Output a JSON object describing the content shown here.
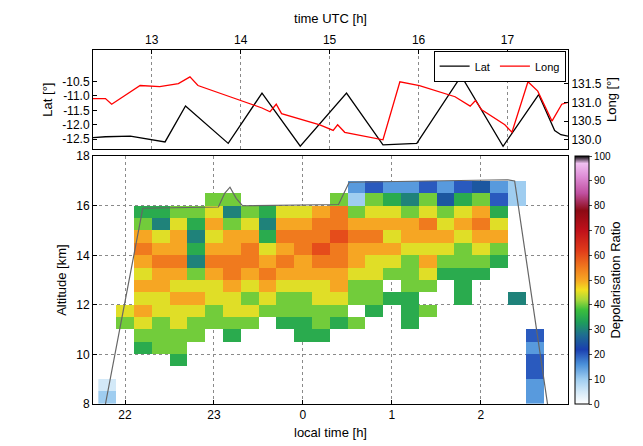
{
  "chart_data": [
    {
      "type": "line",
      "xlabel": "time UTC [h]",
      "ylabel": "Lat [°]",
      "y2label": "Long [°]",
      "xlim": [
        12.34,
        17.68
      ],
      "xticks": [
        13,
        14,
        15,
        16,
        17
      ],
      "ylim": [
        -12.85,
        -9.4
      ],
      "yticks": [
        -12.5,
        {
          "value": -12,
          "label": "-12.0"
        },
        -11.5,
        {
          "value": -11,
          "label": "-11.0"
        },
        -10.5
      ],
      "y2lim": [
        129.75,
        132.4
      ],
      "y2ticks": [
        {
          "value": 130,
          "label": "130.0"
        },
        130.5,
        {
          "value": 131,
          "label": "131.0"
        },
        131.5
      ],
      "grid": true,
      "legend": "upper right",
      "series": [
        {
          "name": "Lat",
          "color": "#000000",
          "x": [
            12.34,
            12.48,
            12.76,
            12.98,
            13.15,
            13.38,
            13.86,
            14.24,
            14.67,
            15.19,
            15.6,
            15.98,
            16.48,
            16.95,
            17.35,
            17.53,
            17.6,
            17.68
          ],
          "values": [
            -12.45,
            -12.42,
            -12.4,
            -12.5,
            -12.6,
            -11.35,
            -12.65,
            -10.9,
            -12.75,
            -10.9,
            -12.7,
            -12.65,
            -10.3,
            -12.75,
            -10.95,
            -12.2,
            -12.35,
            -12.4
          ]
        },
        {
          "name": "Long",
          "color": "#ff0000",
          "axis": "y2",
          "x": [
            12.34,
            12.48,
            12.55,
            12.87,
            13.09,
            13.3,
            13.43,
            13.52,
            13.88,
            14.24,
            14.33,
            14.4,
            14.46,
            14.89,
            15.04,
            15.09,
            15.17,
            15.6,
            15.79,
            16.01,
            16.41,
            16.58,
            16.64,
            16.71,
            16.97,
            17.05,
            17.23,
            17.34,
            17.5,
            17.61,
            17.68
          ],
          "values": [
            131.1,
            131.1,
            130.95,
            131.45,
            131.42,
            131.5,
            131.68,
            131.45,
            131.15,
            130.85,
            130.75,
            130.95,
            130.7,
            130.4,
            130.25,
            130.4,
            130.2,
            130.0,
            131.55,
            131.45,
            131.15,
            130.9,
            131.05,
            130.8,
            130.4,
            130.2,
            131.55,
            131.3,
            130.5,
            130.95,
            131.0
          ]
        }
      ]
    },
    {
      "type": "heatmap",
      "xlabel": "local time [h]",
      "ylabel": "Altitude [km]",
      "colorbar_label": "Depolarisation Ratio",
      "xlim": [
        21.64,
        26.98
      ],
      "xticks": [
        22,
        23,
        {
          "value": 24,
          "label": "0"
        },
        {
          "value": 25,
          "label": "1"
        },
        {
          "value": 26,
          "label": "2"
        }
      ],
      "ylim": [
        8,
        18
      ],
      "yticks": [
        8,
        10,
        12,
        14,
        16,
        18
      ],
      "grid": true,
      "colorbar_range": [
        0,
        100
      ],
      "colorbar_ticks": [
        0,
        10,
        20,
        30,
        40,
        50,
        60,
        70,
        80,
        90,
        100
      ],
      "x": [
        21.8,
        22,
        22.2,
        22.4,
        22.6,
        22.8,
        23,
        23.2,
        23.4,
        23.6,
        23.8,
        24,
        24.2,
        24.4,
        24.6,
        24.8,
        25,
        25.2,
        25.4,
        25.6,
        25.8,
        26,
        26.2,
        26.4,
        26.6,
        26.8
      ],
      "y": [
        8.25,
        8.75,
        9.25,
        9.75,
        10.25,
        10.75,
        11.25,
        11.75,
        12.25,
        12.75,
        13.25,
        13.75,
        14.25,
        14.75,
        15.25,
        15.75,
        16.25,
        16.75,
        17.25
      ],
      "z": [
        [
          10,
          null,
          null,
          null,
          null,
          null,
          null,
          null,
          null,
          null,
          null,
          null,
          null,
          null,
          null,
          null,
          null,
          null,
          null,
          null,
          null,
          null,
          null,
          null,
          15,
          null
        ],
        [
          5,
          null,
          null,
          null,
          null,
          null,
          null,
          null,
          null,
          null,
          null,
          null,
          null,
          null,
          null,
          null,
          null,
          null,
          null,
          null,
          null,
          null,
          null,
          null,
          15,
          null
        ],
        [
          null,
          null,
          null,
          null,
          null,
          null,
          null,
          null,
          null,
          null,
          null,
          null,
          null,
          null,
          null,
          null,
          null,
          null,
          null,
          null,
          null,
          null,
          null,
          null,
          20,
          null
        ],
        [
          null,
          null,
          null,
          null,
          35,
          null,
          null,
          null,
          null,
          null,
          null,
          null,
          null,
          null,
          null,
          null,
          null,
          null,
          null,
          null,
          null,
          null,
          null,
          null,
          20,
          null
        ],
        [
          null,
          null,
          35,
          40,
          40,
          null,
          null,
          null,
          null,
          null,
          null,
          null,
          null,
          null,
          null,
          null,
          null,
          null,
          null,
          null,
          null,
          null,
          null,
          null,
          15,
          null
        ],
        [
          null,
          null,
          40,
          40,
          40,
          40,
          null,
          35,
          null,
          null,
          null,
          35,
          35,
          null,
          null,
          null,
          null,
          null,
          null,
          null,
          null,
          null,
          null,
          null,
          20,
          null
        ],
        [
          null,
          40,
          45,
          40,
          45,
          40,
          40,
          40,
          40,
          null,
          35,
          35,
          40,
          35,
          40,
          null,
          null,
          35,
          null,
          null,
          null,
          null,
          null,
          null,
          null,
          null
        ],
        [
          null,
          45,
          50,
          45,
          45,
          45,
          40,
          45,
          45,
          40,
          40,
          40,
          40,
          40,
          null,
          35,
          null,
          35,
          40,
          null,
          null,
          null,
          null,
          null,
          null,
          null
        ],
        [
          null,
          null,
          45,
          45,
          50,
          50,
          45,
          45,
          40,
          45,
          40,
          40,
          45,
          45,
          40,
          40,
          35,
          35,
          null,
          null,
          35,
          null,
          null,
          30,
          null,
          null
        ],
        [
          null,
          null,
          50,
          50,
          45,
          45,
          45,
          50,
          45,
          50,
          45,
          45,
          45,
          50,
          40,
          40,
          null,
          40,
          40,
          null,
          35,
          null,
          null,
          null,
          null,
          null
        ],
        [
          null,
          null,
          45,
          50,
          50,
          40,
          50,
          55,
          50,
          55,
          50,
          50,
          50,
          50,
          45,
          45,
          40,
          40,
          45,
          35,
          35,
          35,
          null,
          null,
          null,
          null
        ],
        [
          null,
          null,
          50,
          55,
          55,
          30,
          55,
          55,
          55,
          50,
          55,
          50,
          55,
          55,
          50,
          45,
          45,
          40,
          50,
          40,
          40,
          40,
          35,
          null,
          null,
          null
        ],
        [
          null,
          null,
          55,
          50,
          50,
          35,
          50,
          50,
          55,
          45,
          50,
          55,
          60,
          55,
          50,
          50,
          50,
          45,
          45,
          45,
          40,
          45,
          40,
          null,
          null,
          null
        ],
        [
          null,
          null,
          50,
          45,
          50,
          30,
          45,
          50,
          50,
          35,
          55,
          55,
          55,
          60,
          55,
          55,
          45,
          50,
          50,
          50,
          45,
          50,
          50,
          null,
          null,
          null
        ],
        [
          null,
          null,
          40,
          30,
          45,
          35,
          50,
          40,
          45,
          30,
          50,
          50,
          55,
          55,
          50,
          50,
          50,
          50,
          55,
          45,
          50,
          55,
          45,
          null,
          null,
          null
        ],
        [
          null,
          null,
          35,
          35,
          40,
          40,
          45,
          30,
          40,
          35,
          45,
          45,
          50,
          55,
          40,
          45,
          45,
          40,
          45,
          40,
          45,
          50,
          35,
          null,
          null,
          null
        ],
        [
          null,
          null,
          null,
          null,
          null,
          null,
          40,
          40,
          null,
          null,
          null,
          null,
          null,
          40,
          10,
          40,
          35,
          30,
          40,
          25,
          35,
          40,
          20,
          10,
          null,
          null
        ],
        [
          null,
          null,
          null,
          null,
          null,
          null,
          null,
          null,
          null,
          null,
          null,
          null,
          null,
          null,
          15,
          20,
          15,
          15,
          20,
          15,
          20,
          25,
          15,
          10,
          null,
          null
        ],
        [
          null,
          null,
          null,
          null,
          null,
          null,
          null,
          null,
          null,
          null,
          null,
          null,
          null,
          null,
          null,
          null,
          null,
          null,
          null,
          null,
          null,
          null,
          null,
          null,
          null,
          null
        ]
      ],
      "series": [
        {
          "type": "line",
          "color": "#666666",
          "x": [
            21.78,
            22.2,
            23.05,
            23.12,
            23.18,
            23.25,
            23.32,
            24.4,
            24.52,
            26.3,
            26.38,
            26.75
          ],
          "values": [
            8,
            15.9,
            15.95,
            16.5,
            16.75,
            16.3,
            16.0,
            16.05,
            16.95,
            17.05,
            17.0,
            8
          ]
        }
      ]
    }
  ]
}
